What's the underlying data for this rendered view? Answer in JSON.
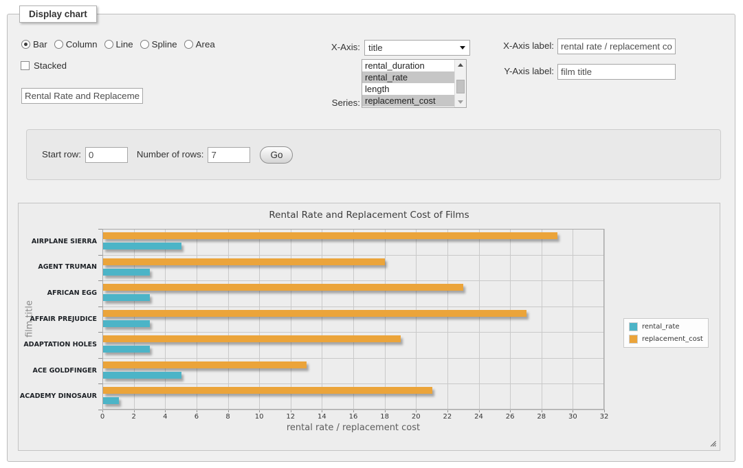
{
  "window": {
    "legend": "Display chart"
  },
  "controls": {
    "chart_types": [
      {
        "label": "Bar",
        "selected": true
      },
      {
        "label": "Column",
        "selected": false
      },
      {
        "label": "Line",
        "selected": false
      },
      {
        "label": "Spline",
        "selected": false
      },
      {
        "label": "Area",
        "selected": false
      }
    ],
    "stacked": {
      "label": "Stacked",
      "checked": false
    },
    "chart_title_input": {
      "value": "Rental Rate and Replacement Cost of Films"
    },
    "xaxis_select": {
      "label": "X-Axis:",
      "selected_value": "title"
    },
    "series_list": {
      "label": "Series:",
      "visible_options": [
        {
          "label": "rental_duration",
          "selected": false
        },
        {
          "label": "rental_rate",
          "selected": true
        },
        {
          "label": "length",
          "selected": false
        },
        {
          "label": "replacement_cost",
          "selected": true
        }
      ]
    },
    "xaxis_label_input": {
      "label": "X-Axis label:",
      "value": "rental rate / replacement cost"
    },
    "yaxis_label_input": {
      "label": "Y-Axis label:",
      "value": "film title"
    }
  },
  "pager": {
    "start_row_label": "Start row:",
    "start_row_value": "0",
    "rows_label": "Number of rows:",
    "rows_value": "7",
    "go_label": "Go"
  },
  "icons": {
    "select_arrow": "caret-down",
    "scrollbar_up": "triangle-up",
    "scrollbar_down": "triangle-down",
    "resize_handle": "diagonal-grip"
  },
  "chart_data": {
    "type": "bar",
    "orientation": "horizontal",
    "title": "Rental Rate and Replacement Cost of Films",
    "xlabel": "rental rate / replacement cost",
    "ylabel": "film title",
    "categories": [
      "AIRPLANE SIERRA",
      "AGENT TRUMAN",
      "AFRICAN EGG",
      "AFFAIR PREJUDICE",
      "ADAPTATION HOLES",
      "ACE GOLDFINGER",
      "ACADEMY DINOSAUR"
    ],
    "series": [
      {
        "name": "rental_rate",
        "color": "#4cb4c7",
        "values": [
          4.99,
          2.99,
          2.99,
          2.99,
          2.99,
          4.99,
          0.99
        ]
      },
      {
        "name": "replacement_cost",
        "color": "#eba43a",
        "values": [
          28.99,
          17.99,
          22.99,
          26.99,
          18.99,
          12.99,
          20.99
        ]
      }
    ],
    "bar_draw_order_top_to_bottom": [
      "replacement_cost",
      "rental_rate"
    ],
    "xlim": [
      0,
      32
    ],
    "xticks": [
      0,
      2,
      4,
      6,
      8,
      10,
      12,
      14,
      16,
      18,
      20,
      22,
      24,
      26,
      28,
      30,
      32
    ],
    "grid": true,
    "legend_position": "right",
    "background_color": "#ededed",
    "grid_color": "#c9c9c9"
  }
}
